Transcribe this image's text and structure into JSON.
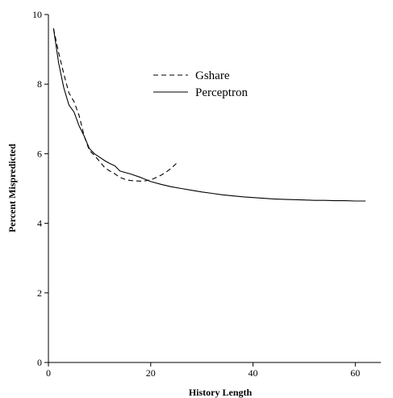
{
  "chart_data": {
    "type": "line",
    "xlabel": "History Length",
    "ylabel": "Percent Mispredicted",
    "xlim": [
      0,
      65
    ],
    "ylim": [
      0,
      10
    ],
    "xticks": [
      0,
      20,
      40,
      60
    ],
    "yticks": [
      0,
      2,
      4,
      6,
      8,
      10
    ],
    "grid": false,
    "legend_position": "top-center",
    "series": [
      {
        "name": "Gshare",
        "style": "dashed",
        "color": "#000000",
        "x": [
          1,
          2,
          3,
          4,
          5,
          6,
          7,
          8,
          9,
          10,
          11,
          12,
          13,
          14,
          15,
          16,
          17,
          18,
          19,
          20,
          21,
          22,
          23,
          24,
          25
        ],
        "y": [
          9.6,
          8.9,
          8.3,
          7.75,
          7.5,
          7.1,
          6.5,
          6.1,
          5.95,
          5.78,
          5.6,
          5.5,
          5.42,
          5.32,
          5.26,
          5.23,
          5.22,
          5.21,
          5.22,
          5.25,
          5.31,
          5.38,
          5.47,
          5.58,
          5.72
        ]
      },
      {
        "name": "Perceptron",
        "style": "solid",
        "color": "#000000",
        "x": [
          1,
          2,
          3,
          4,
          5,
          6,
          7,
          8,
          9,
          10,
          11,
          12,
          13,
          14,
          16,
          18,
          20,
          22,
          24,
          26,
          28,
          30,
          32,
          34,
          36,
          38,
          40,
          42,
          44,
          46,
          48,
          50,
          52,
          54,
          56,
          58,
          60,
          62
        ],
        "y": [
          9.6,
          8.6,
          7.9,
          7.4,
          7.2,
          6.8,
          6.5,
          6.15,
          6.0,
          5.9,
          5.8,
          5.72,
          5.65,
          5.5,
          5.42,
          5.32,
          5.2,
          5.12,
          5.05,
          5.0,
          4.95,
          4.9,
          4.86,
          4.82,
          4.79,
          4.76,
          4.74,
          4.72,
          4.7,
          4.69,
          4.68,
          4.67,
          4.66,
          4.66,
          4.65,
          4.65,
          4.64,
          4.64
        ]
      }
    ]
  }
}
